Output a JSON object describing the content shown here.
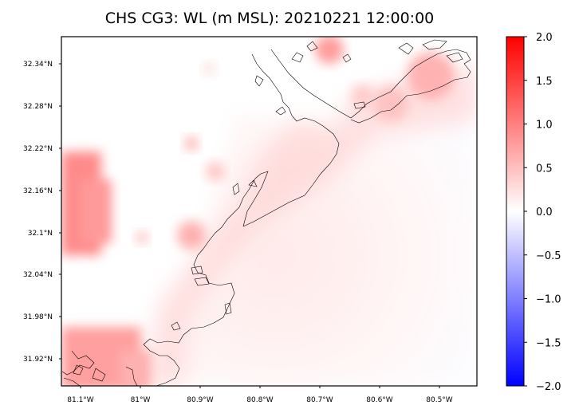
{
  "title": "CHS CG3: WL (m MSL): 20210221 12:00:00",
  "map": {
    "lat_labels": [
      "32.34°N",
      "32.28°N",
      "32.22°N",
      "32.16°N",
      "32.1°N",
      "32.04°N",
      "31.98°N",
      "31.92°N"
    ],
    "lon_labels": [
      "81.1°W",
      "81°W",
      "80.9°W",
      "80.8°W",
      "80.7°W",
      "80.6°W",
      "80.5°W"
    ]
  },
  "colorbar": {
    "labels": [
      "2.0",
      "1.5",
      "1.0",
      "0.5",
      "0.0",
      "−0.5",
      "−1.0",
      "−1.5",
      "−2.0"
    ],
    "min": -2.0,
    "max": 2.0,
    "colors": [
      "#0000ff",
      "#ffffff",
      "#ff0000"
    ]
  }
}
